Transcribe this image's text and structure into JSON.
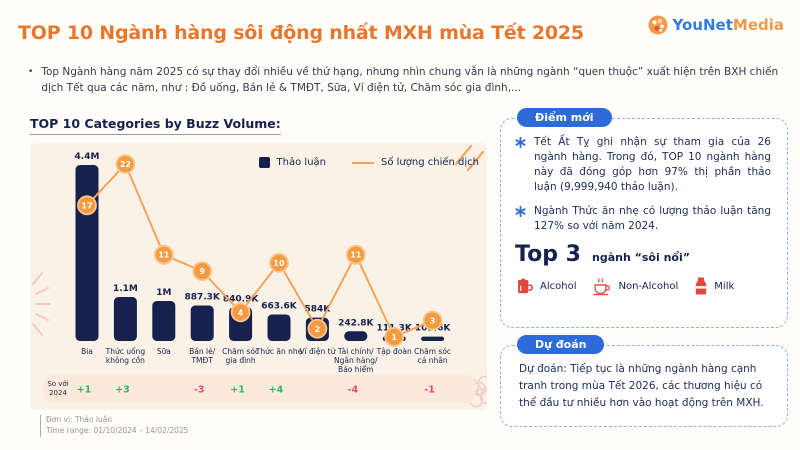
{
  "colors": {
    "accent_orange": "#E8772E",
    "navy": "#17214E",
    "line_orange": "#F5A35C",
    "marker_orange": "#F49B42",
    "marker_ring": "#FBC68E",
    "green": "#2FB56B",
    "red": "#F0487A",
    "panel_bg": "#FAF2E6",
    "strip_bg": "#FBEADA",
    "badge_blue": "#2D6BD8",
    "card_border": "#8FB0E9",
    "icon_red": "#DC4B41",
    "logo_blue": "#2E7CE4",
    "logo_orange": "#F2994A"
  },
  "header": {
    "title": "TOP 10 Ngành hàng sôi động nhất MXH mùa Tết 2025",
    "logo": {
      "part1": "YouNet",
      "part2": "Media"
    }
  },
  "intro": {
    "bullet_marker": "•",
    "text": "Top Ngành hàng năm 2025 có sự thay đổi nhiều về thứ hạng, nhưng nhìn chung vẫn là những ngành “quen thuộc” xuất hiện trên BXH chiến dịch Tết qua các năm, như : Đồ uống, Bán lẻ & TMĐT, Sữa, Ví điện tử, Chăm sóc gia đình,..."
  },
  "chart": {
    "title": "TOP 10 Categories by Buzz Volume:",
    "legend": [
      {
        "label": "Thảo luận",
        "type": "bar"
      },
      {
        "label": "Số lượng chiến dịch",
        "type": "line"
      }
    ]
  },
  "chart_data": {
    "type": "bar",
    "title": "TOP 10 Categories by Buzz Volume:",
    "categories": [
      "Bia",
      "Thức uống không cồn",
      "Sữa",
      "Bán lẻ/TMĐT",
      "Chăm sóc gia đình",
      "Thức ăn nhẹ",
      "Ví điện tử",
      "Tài chính/Ngân hàng/Bảo hiểm",
      "Tập đoàn",
      "Chăm sóc cá nhân"
    ],
    "categories_wrapped": [
      [
        "Bia"
      ],
      [
        "Thức uống",
        "không cồn"
      ],
      [
        "Sữa"
      ],
      [
        "Bán lẻ/",
        "TMĐT"
      ],
      [
        "Chăm sóc",
        "gia đình"
      ],
      [
        "Thức ăn nhẹ"
      ],
      [
        "Ví điện tử"
      ],
      [
        "Tài chính/",
        "Ngân hàng/",
        "Bảo hiểm"
      ],
      [
        "Tập đoàn"
      ],
      [
        "Chăm sóc",
        "cá nhân"
      ]
    ],
    "series": [
      {
        "name": "Thảo luận",
        "type": "bar",
        "values": [
          4400000,
          1100000,
          1000000,
          887300,
          840900,
          663600,
          584000,
          242800,
          111300,
          109600
        ],
        "labels": [
          "4.4M",
          "1.1M",
          "1M",
          "887.3K",
          "840.9K",
          "663.6K",
          "584K",
          "242.8K",
          "111.3K",
          "109.6K"
        ]
      },
      {
        "name": "Số lượng chiến dịch",
        "type": "line",
        "values": [
          17,
          22,
          11,
          9,
          4,
          10,
          2,
          11,
          1,
          3
        ]
      }
    ],
    "y_axis": {
      "unit": "Thảo luận",
      "max": 4400000
    },
    "line_axis": {
      "min": 1,
      "max": 22
    },
    "legend_position": "top-right",
    "comparison": {
      "label_line1": "So với",
      "label_line2": "2024",
      "values": [
        "+1",
        "+3",
        "",
        "-3",
        "+1",
        "+4",
        "",
        "-4",
        "",
        "-1"
      ]
    }
  },
  "insight_card": {
    "badge": "Điểm mới",
    "bullets": [
      "Tết Ất Tỵ ghi nhận sự tham gia của 26 ngành hàng. Trong đó, TOP 10 ngành hàng này đã đóng góp hơn 97% thị phần thảo luận (9,999,940 thảo luận).",
      "Ngành Thức ăn nhẹ có lượng thảo luận tăng 127% so với năm 2024."
    ],
    "top3_title_big": "Top 3",
    "top3_title_small": "ngành “sôi nổi”",
    "top3_items": [
      {
        "icon": "beer-mug-icon",
        "label": "Alcohol"
      },
      {
        "icon": "tea-cup-icon",
        "label": "Non-Alcohol"
      },
      {
        "icon": "milk-bottle-icon",
        "label": "Milk"
      }
    ]
  },
  "prediction_card": {
    "badge": "Dự đoán",
    "text": "Dự đoán: Tiếp tục là những ngành hàng cạnh tranh trong mùa Tết 2026, các thương hiệu có thể đầu tư nhiều hơn vào hoạt động trên MXH."
  },
  "footer": {
    "line1": "Đơn vị: Thảo luận",
    "line2": "Time range: 01/10/2024 – 14/02/2025"
  }
}
